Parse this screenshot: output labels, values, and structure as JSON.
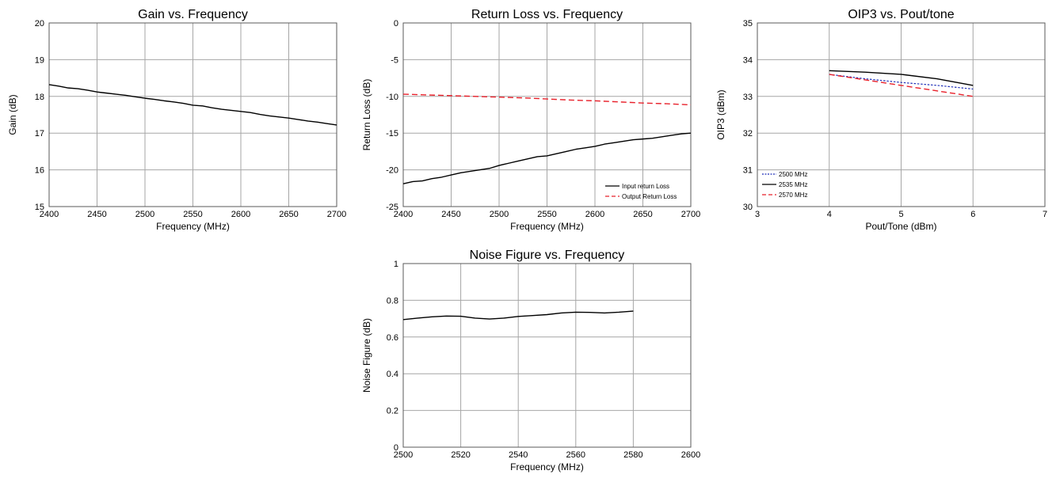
{
  "chart_data": [
    {
      "id": "gain",
      "type": "line",
      "title": "Gain vs. Frequency",
      "xlabel": "Frequency (MHz)",
      "ylabel": "Gain (dB)",
      "xlim": [
        2400,
        2700
      ],
      "ylim": [
        15,
        20
      ],
      "xticks": [
        2400,
        2450,
        2500,
        2550,
        2600,
        2650,
        2700
      ],
      "yticks": [
        15,
        16,
        17,
        18,
        19,
        20
      ],
      "grid": true,
      "legend": null,
      "series": [
        {
          "color": "#000000",
          "dash": "solid",
          "x": [
            2400,
            2410,
            2420,
            2430,
            2440,
            2450,
            2460,
            2470,
            2480,
            2490,
            2500,
            2510,
            2520,
            2530,
            2540,
            2550,
            2560,
            2570,
            2580,
            2590,
            2600,
            2610,
            2620,
            2630,
            2640,
            2650,
            2660,
            2670,
            2680,
            2690,
            2700
          ],
          "y": [
            18.32,
            18.28,
            18.23,
            18.21,
            18.17,
            18.12,
            18.09,
            18.06,
            18.03,
            17.99,
            17.95,
            17.92,
            17.88,
            17.85,
            17.81,
            17.76,
            17.74,
            17.69,
            17.65,
            17.62,
            17.59,
            17.56,
            17.51,
            17.47,
            17.44,
            17.41,
            17.37,
            17.33,
            17.3,
            17.26,
            17.22
          ]
        }
      ]
    },
    {
      "id": "return-loss",
      "type": "line",
      "title": "Return Loss vs. Frequency",
      "xlabel": "Frequency (MHz)",
      "ylabel": "Return Loss (dB)",
      "xlim": [
        2400,
        2700
      ],
      "ylim": [
        -25,
        0
      ],
      "xticks": [
        2400,
        2450,
        2500,
        2550,
        2600,
        2650,
        2700
      ],
      "yticks": [
        -25,
        -20,
        -15,
        -10,
        -5,
        0
      ],
      "grid": true,
      "legend": "bottom-right",
      "series": [
        {
          "name": "Input return Loss",
          "color": "#000000",
          "dash": "solid",
          "x": [
            2400,
            2410,
            2420,
            2430,
            2440,
            2450,
            2460,
            2470,
            2480,
            2490,
            2500,
            2510,
            2520,
            2530,
            2540,
            2550,
            2560,
            2570,
            2580,
            2590,
            2600,
            2610,
            2620,
            2630,
            2640,
            2650,
            2660,
            2670,
            2680,
            2690,
            2700
          ],
          "y": [
            -21.9,
            -21.6,
            -21.5,
            -21.2,
            -21.0,
            -20.7,
            -20.4,
            -20.2,
            -20.0,
            -19.8,
            -19.4,
            -19.1,
            -18.8,
            -18.5,
            -18.2,
            -18.1,
            -17.8,
            -17.5,
            -17.2,
            -17.0,
            -16.8,
            -16.5,
            -16.3,
            -16.1,
            -15.9,
            -15.8,
            -15.7,
            -15.5,
            -15.3,
            -15.1,
            -15.0
          ]
        },
        {
          "name": "Output Return Loss",
          "color": "#e8202a",
          "dash": "dashed",
          "x": [
            2400,
            2425,
            2450,
            2475,
            2500,
            2525,
            2550,
            2575,
            2600,
            2625,
            2650,
            2675,
            2700
          ],
          "y": [
            -9.7,
            -9.8,
            -9.9,
            -10.0,
            -10.1,
            -10.2,
            -10.35,
            -10.5,
            -10.6,
            -10.75,
            -10.9,
            -11.0,
            -11.15
          ]
        }
      ]
    },
    {
      "id": "oip3",
      "type": "line",
      "title": "OIP3 vs. Pout/tone",
      "xlabel": "Pout/Tone (dBm)",
      "ylabel": "OIP3 (dBm)",
      "xlim": [
        3,
        7
      ],
      "ylim": [
        30,
        35
      ],
      "xticks": [
        3,
        4,
        5,
        6,
        7
      ],
      "yticks": [
        30,
        31,
        32,
        33,
        34,
        35
      ],
      "grid": true,
      "legend": "bottom-left",
      "series": [
        {
          "name": "2500 MHz",
          "color": "#1f2fb8",
          "dash": "dotted",
          "x": [
            4,
            4.5,
            5,
            5.5,
            6
          ],
          "y": [
            33.6,
            33.48,
            33.38,
            33.3,
            33.2
          ]
        },
        {
          "name": "2535 MHz",
          "color": "#000000",
          "dash": "solid",
          "x": [
            4,
            4.5,
            5,
            5.5,
            6
          ],
          "y": [
            33.7,
            33.66,
            33.6,
            33.48,
            33.3
          ]
        },
        {
          "name": "2570 MHz",
          "color": "#e8202a",
          "dash": "dashed",
          "x": [
            4,
            4.5,
            5,
            5.5,
            6
          ],
          "y": [
            33.6,
            33.45,
            33.3,
            33.15,
            33.0
          ]
        }
      ]
    },
    {
      "id": "noise-figure",
      "type": "line",
      "title": "Noise Figure vs. Frequency",
      "xlabel": "Frequency (MHz)",
      "ylabel": "Noise Figure (dB)",
      "xlim": [
        2500,
        2600
      ],
      "ylim": [
        0,
        1
      ],
      "xticks": [
        2500,
        2520,
        2540,
        2560,
        2580,
        2600
      ],
      "yticks": [
        0,
        0.2,
        0.4,
        0.6,
        0.8,
        1
      ],
      "grid": true,
      "legend": null,
      "series": [
        {
          "color": "#000000",
          "dash": "solid",
          "x": [
            2500,
            2505,
            2510,
            2515,
            2520,
            2525,
            2530,
            2535,
            2540,
            2545,
            2550,
            2555,
            2560,
            2565,
            2570,
            2575,
            2580
          ],
          "y": [
            0.695,
            0.703,
            0.71,
            0.714,
            0.713,
            0.703,
            0.698,
            0.703,
            0.712,
            0.717,
            0.722,
            0.731,
            0.735,
            0.734,
            0.731,
            0.735,
            0.741
          ]
        }
      ]
    }
  ]
}
